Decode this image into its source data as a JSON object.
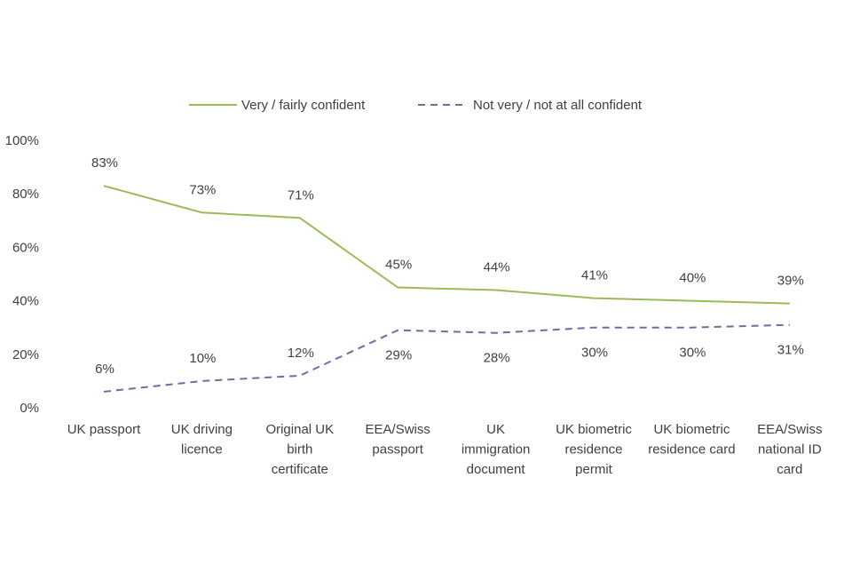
{
  "chart_data": {
    "type": "line",
    "title": "",
    "xlabel": "",
    "ylabel": "",
    "ylim": [
      0,
      100
    ],
    "yticks": [
      "0%",
      "20%",
      "40%",
      "60%",
      "80%",
      "100%"
    ],
    "grid": false,
    "legend_position": "top",
    "categories": [
      [
        "UK passport"
      ],
      [
        "UK driving",
        "licence"
      ],
      [
        "Original UK",
        "birth",
        "certificate"
      ],
      [
        "EEA/Swiss",
        "passport"
      ],
      [
        "UK",
        "immigration",
        "document"
      ],
      [
        "UK biometric",
        "residence",
        "permit"
      ],
      [
        "UK biometric",
        "residence card"
      ],
      [
        "EEA/Swiss",
        "national ID",
        "card"
      ]
    ],
    "series": [
      {
        "name": "Very / fairly confident",
        "color": "#9BBB59",
        "dash": "solid",
        "values": [
          83,
          73,
          71,
          45,
          44,
          41,
          40,
          39
        ],
        "labels": [
          "83%",
          "73%",
          "71%",
          "45%",
          "44%",
          "41%",
          "40%",
          "39%"
        ]
      },
      {
        "name": "Not very / not at all confident",
        "color": "#8064A2",
        "dash": "dashed",
        "values": [
          6,
          10,
          12,
          29,
          28,
          30,
          30,
          31
        ],
        "labels": [
          "6%",
          "10%",
          "12%",
          "29%",
          "28%",
          "30%",
          "30%",
          "31%"
        ]
      }
    ]
  }
}
